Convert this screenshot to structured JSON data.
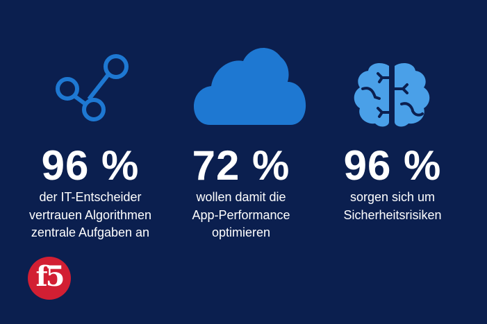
{
  "colors": {
    "background": "#0b1f4f",
    "graph": "#1e78d2",
    "cloud": "#1e78d2",
    "brain": "#4aa0e8",
    "logo": "#d21f33"
  },
  "stats": [
    {
      "icon": "graph-nodes-icon",
      "value": "96 %",
      "lines": [
        "der IT-Entscheider",
        "vertrauen Algorithmen",
        "zentrale Aufgaben an"
      ]
    },
    {
      "icon": "cloud-icon",
      "value": "72 %",
      "lines": [
        "wollen damit die",
        "App-Performance",
        "optimieren"
      ]
    },
    {
      "icon": "brain-icon",
      "value": "96 %",
      "lines": [
        "sorgen sich um",
        "Sicherheitsrisiken"
      ]
    }
  ],
  "logo": "f5"
}
